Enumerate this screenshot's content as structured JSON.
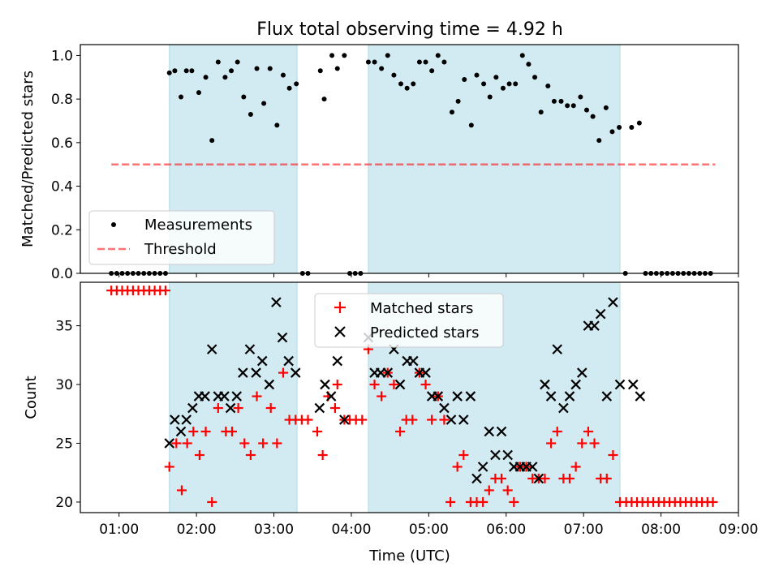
{
  "title": "Flux total observing time = 4.92 h",
  "colors": {
    "shade": "#add8e6",
    "threshold": "#ff0000",
    "matched": "#ff0000",
    "predicted": "#000000",
    "measure": "#000000"
  },
  "x_ticks": [
    "01:00",
    "02:00",
    "03:00",
    "04:00",
    "05:00",
    "06:00",
    "07:00",
    "08:00",
    "09:00"
  ],
  "xlabel": "Time (UTC)",
  "chart_data": [
    {
      "type": "scatter",
      "ylabel": "Matched/Predicted stars",
      "xlim_hours": [
        0.5,
        9.0
      ],
      "ylim": [
        0,
        1.05
      ],
      "y_ticks": [
        "0.0",
        "0.2",
        "0.4",
        "0.6",
        "0.8",
        "1.0"
      ],
      "legend": [
        "Measurements",
        "Threshold"
      ],
      "legend_position": "lower-left",
      "threshold": {
        "value": 0.5,
        "x_range_hours": [
          0.9,
          8.7
        ]
      },
      "shaded_intervals_hours": [
        [
          1.65,
          3.3
        ],
        [
          4.22,
          7.47
        ]
      ],
      "series": [
        {
          "name": "Measurements",
          "points": [
            [
              0.9,
              0
            ],
            [
              0.97,
              0
            ],
            [
              1.04,
              0
            ],
            [
              1.11,
              0
            ],
            [
              1.18,
              0
            ],
            [
              1.25,
              0
            ],
            [
              1.32,
              0
            ],
            [
              1.39,
              0
            ],
            [
              1.46,
              0
            ],
            [
              1.53,
              0
            ],
            [
              1.6,
              0
            ],
            [
              1.65,
              0.92
            ],
            [
              1.72,
              0.93
            ],
            [
              1.8,
              0.81
            ],
            [
              1.87,
              0.93
            ],
            [
              1.94,
              0.93
            ],
            [
              2.03,
              0.83
            ],
            [
              2.12,
              0.9
            ],
            [
              2.2,
              0.61
            ],
            [
              2.28,
              0.97
            ],
            [
              2.37,
              0.9
            ],
            [
              2.45,
              0.93
            ],
            [
              2.53,
              0.97
            ],
            [
              2.61,
              0.81
            ],
            [
              2.7,
              0.73
            ],
            [
              2.78,
              0.94
            ],
            [
              2.87,
              0.78
            ],
            [
              2.95,
              0.94
            ],
            [
              3.04,
              0.68
            ],
            [
              3.12,
              0.91
            ],
            [
              3.2,
              0.85
            ],
            [
              3.29,
              0.87
            ],
            [
              3.37,
              0
            ],
            [
              3.44,
              0
            ],
            [
              3.6,
              0.93
            ],
            [
              3.65,
              0.8
            ],
            [
              3.75,
              1.0
            ],
            [
              3.82,
              0.94
            ],
            [
              3.91,
              1.0
            ],
            [
              3.98,
              0
            ],
            [
              4.05,
              0
            ],
            [
              4.12,
              0
            ],
            [
              4.22,
              0.97
            ],
            [
              4.3,
              0.97
            ],
            [
              4.39,
              0.94
            ],
            [
              4.47,
              1.0
            ],
            [
              4.55,
              0.91
            ],
            [
              4.64,
              0.87
            ],
            [
              4.72,
              0.85
            ],
            [
              4.8,
              0.87
            ],
            [
              4.88,
              0.97
            ],
            [
              4.96,
              0.97
            ],
            [
              5.04,
              0.93
            ],
            [
              5.12,
              1.0
            ],
            [
              5.2,
              0.97
            ],
            [
              5.3,
              0.74
            ],
            [
              5.38,
              0.79
            ],
            [
              5.46,
              0.89
            ],
            [
              5.55,
              0.68
            ],
            [
              5.62,
              0.91
            ],
            [
              5.71,
              0.87
            ],
            [
              5.79,
              0.81
            ],
            [
              5.87,
              0.9
            ],
            [
              5.96,
              0.85
            ],
            [
              6.04,
              0.87
            ],
            [
              6.12,
              0.87
            ],
            [
              6.21,
              1.0
            ],
            [
              6.29,
              0.96
            ],
            [
              6.37,
              0.9
            ],
            [
              6.45,
              0.74
            ],
            [
              6.54,
              0.86
            ],
            [
              6.62,
              0.79
            ],
            [
              6.71,
              0.79
            ],
            [
              6.79,
              0.77
            ],
            [
              6.87,
              0.77
            ],
            [
              6.96,
              0.81
            ],
            [
              7.04,
              0.75
            ],
            [
              7.12,
              0.72
            ],
            [
              7.2,
              0.61
            ],
            [
              7.29,
              0.76
            ],
            [
              7.37,
              0.65
            ],
            [
              7.46,
              0.67
            ],
            [
              7.54,
              0
            ],
            [
              7.62,
              0.67
            ],
            [
              7.72,
              0.69
            ],
            [
              7.8,
              0
            ],
            [
              7.87,
              0
            ],
            [
              7.94,
              0
            ],
            [
              8.01,
              0
            ],
            [
              8.08,
              0
            ],
            [
              8.15,
              0
            ],
            [
              8.22,
              0
            ],
            [
              8.29,
              0
            ],
            [
              8.36,
              0
            ],
            [
              8.43,
              0
            ],
            [
              8.5,
              0
            ],
            [
              8.57,
              0
            ],
            [
              8.64,
              0
            ]
          ]
        }
      ]
    },
    {
      "type": "scatter",
      "ylabel": "Count",
      "xlim_hours": [
        0.5,
        9.0
      ],
      "ylim": [
        19.1,
        38.7
      ],
      "y_ticks": [
        "20",
        "25",
        "30",
        "35"
      ],
      "legend": [
        "Matched stars",
        "Predicted stars"
      ],
      "legend_position": "top-center",
      "shaded_intervals_hours": [
        [
          1.65,
          3.3
        ],
        [
          4.22,
          7.47
        ]
      ],
      "series": [
        {
          "name": "Matched stars",
          "marker": "plus",
          "points": [
            [
              0.9,
              38
            ],
            [
              0.97,
              38
            ],
            [
              1.04,
              38
            ],
            [
              1.11,
              38
            ],
            [
              1.18,
              38
            ],
            [
              1.25,
              38
            ],
            [
              1.32,
              38
            ],
            [
              1.39,
              38
            ],
            [
              1.46,
              38
            ],
            [
              1.53,
              38
            ],
            [
              1.6,
              38
            ],
            [
              1.65,
              23
            ],
            [
              1.74,
              25
            ],
            [
              1.81,
              21
            ],
            [
              1.88,
              25
            ],
            [
              1.96,
              26
            ],
            [
              2.04,
              24
            ],
            [
              2.12,
              26
            ],
            [
              2.2,
              20
            ],
            [
              2.28,
              28
            ],
            [
              2.38,
              26
            ],
            [
              2.46,
              26
            ],
            [
              2.54,
              28
            ],
            [
              2.62,
              25
            ],
            [
              2.7,
              24
            ],
            [
              2.78,
              29
            ],
            [
              2.86,
              25
            ],
            [
              2.96,
              28
            ],
            [
              3.04,
              25
            ],
            [
              3.12,
              31
            ],
            [
              3.2,
              27
            ],
            [
              3.28,
              27
            ],
            [
              3.36,
              27
            ],
            [
              3.44,
              27
            ],
            [
              3.56,
              26
            ],
            [
              3.63,
              24
            ],
            [
              3.7,
              29
            ],
            [
              3.79,
              28
            ],
            [
              3.82,
              30
            ],
            [
              3.91,
              27
            ],
            [
              3.98,
              27
            ],
            [
              4.06,
              27
            ],
            [
              4.14,
              27
            ],
            [
              4.22,
              33
            ],
            [
              4.3,
              30
            ],
            [
              4.39,
              29
            ],
            [
              4.47,
              31
            ],
            [
              4.55,
              30
            ],
            [
              4.63,
              26
            ],
            [
              4.71,
              27
            ],
            [
              4.79,
              27
            ],
            [
              4.88,
              31
            ],
            [
              4.96,
              30
            ],
            [
              5.04,
              27
            ],
            [
              5.12,
              29
            ],
            [
              5.2,
              27
            ],
            [
              5.28,
              20
            ],
            [
              5.37,
              23
            ],
            [
              5.45,
              24
            ],
            [
              5.54,
              20
            ],
            [
              5.62,
              20
            ],
            [
              5.7,
              20
            ],
            [
              5.78,
              21
            ],
            [
              5.86,
              22
            ],
            [
              5.94,
              22
            ],
            [
              6.02,
              21
            ],
            [
              6.1,
              20
            ],
            [
              6.18,
              23
            ],
            [
              6.26,
              23
            ],
            [
              6.34,
              22
            ],
            [
              6.42,
              22
            ],
            [
              6.5,
              22
            ],
            [
              6.58,
              25
            ],
            [
              6.66,
              26
            ],
            [
              6.74,
              22
            ],
            [
              6.82,
              22
            ],
            [
              6.9,
              23
            ],
            [
              6.98,
              25
            ],
            [
              7.06,
              26
            ],
            [
              7.14,
              25
            ],
            [
              7.22,
              22
            ],
            [
              7.3,
              22
            ],
            [
              7.38,
              24
            ],
            [
              7.47,
              20
            ],
            [
              7.55,
              20
            ],
            [
              7.62,
              20
            ],
            [
              7.69,
              20
            ],
            [
              7.76,
              20
            ],
            [
              7.83,
              20
            ],
            [
              7.9,
              20
            ],
            [
              7.97,
              20
            ],
            [
              8.04,
              20
            ],
            [
              8.11,
              20
            ],
            [
              8.18,
              20
            ],
            [
              8.25,
              20
            ],
            [
              8.32,
              20
            ],
            [
              8.39,
              20
            ],
            [
              8.46,
              20
            ],
            [
              8.53,
              20
            ],
            [
              8.6,
              20
            ],
            [
              8.67,
              20
            ]
          ]
        },
        {
          "name": "Predicted stars",
          "marker": "x",
          "points": [
            [
              1.65,
              25
            ],
            [
              1.72,
              27
            ],
            [
              1.8,
              26
            ],
            [
              1.87,
              27
            ],
            [
              1.95,
              28
            ],
            [
              2.03,
              29
            ],
            [
              2.11,
              29
            ],
            [
              2.2,
              33
            ],
            [
              2.28,
              29
            ],
            [
              2.36,
              29
            ],
            [
              2.44,
              28
            ],
            [
              2.52,
              29
            ],
            [
              2.6,
              31
            ],
            [
              2.69,
              33
            ],
            [
              2.77,
              31
            ],
            [
              2.85,
              32
            ],
            [
              2.94,
              30
            ],
            [
              3.03,
              37
            ],
            [
              3.11,
              34
            ],
            [
              3.19,
              32
            ],
            [
              3.28,
              31
            ],
            [
              3.59,
              28
            ],
            [
              3.66,
              30
            ],
            [
              3.74,
              29
            ],
            [
              3.82,
              32
            ],
            [
              3.91,
              27
            ],
            [
              4.22,
              34
            ],
            [
              4.3,
              31
            ],
            [
              4.38,
              31
            ],
            [
              4.47,
              31
            ],
            [
              4.55,
              33
            ],
            [
              4.63,
              30
            ],
            [
              4.72,
              32
            ],
            [
              4.8,
              32
            ],
            [
              4.88,
              31
            ],
            [
              4.96,
              31
            ],
            [
              5.04,
              29
            ],
            [
              5.12,
              29
            ],
            [
              5.2,
              28
            ],
            [
              5.29,
              27
            ],
            [
              5.37,
              29
            ],
            [
              5.45,
              27
            ],
            [
              5.54,
              29
            ],
            [
              5.62,
              22
            ],
            [
              5.7,
              23
            ],
            [
              5.78,
              26
            ],
            [
              5.86,
              24
            ],
            [
              5.94,
              26
            ],
            [
              6.02,
              24
            ],
            [
              6.1,
              23
            ],
            [
              6.18,
              23
            ],
            [
              6.26,
              23
            ],
            [
              6.34,
              23
            ],
            [
              6.42,
              22
            ],
            [
              6.5,
              30
            ],
            [
              6.58,
              29
            ],
            [
              6.66,
              33
            ],
            [
              6.74,
              28
            ],
            [
              6.82,
              29
            ],
            [
              6.9,
              30
            ],
            [
              6.98,
              31
            ],
            [
              7.06,
              35
            ],
            [
              7.14,
              35
            ],
            [
              7.22,
              36
            ],
            [
              7.3,
              29
            ],
            [
              7.38,
              37
            ],
            [
              7.47,
              30
            ],
            [
              7.64,
              30
            ],
            [
              7.73,
              29
            ]
          ]
        }
      ]
    }
  ]
}
